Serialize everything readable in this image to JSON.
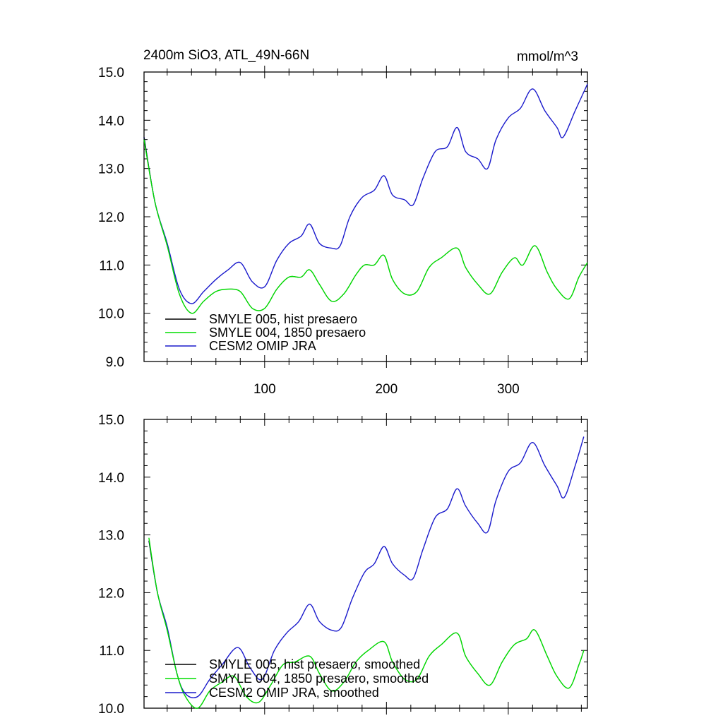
{
  "header": {
    "left_title": "2400m SiO3, ATL_49N-66N",
    "right_title": "mmol/m^3"
  },
  "colors": {
    "smyle005": "#000000",
    "smyle004": "#00dd00",
    "omip": "#1a1acc"
  },
  "chart_data": [
    {
      "type": "line",
      "xlim": [
        1,
        365
      ],
      "ylim": [
        9.0,
        15.0
      ],
      "x_ticks_labeled": [
        100,
        200,
        300
      ],
      "y_ticks": [
        "9.0",
        "10.0",
        "11.0",
        "12.0",
        "13.0",
        "14.0",
        "15.0"
      ],
      "x_tick_labels": [
        "100",
        "200",
        "300"
      ],
      "legend": [
        "SMYLE 005, hist presaero",
        "SMYLE 004, 1850 presaero",
        "CESM2 OMIP JRA"
      ],
      "series": [
        {
          "name": "SMYLE 005, hist presaero",
          "color_key": "smyle005",
          "x": [
            1,
            10,
            20,
            30,
            40,
            50,
            60,
            70,
            80,
            90,
            100,
            110,
            120,
            130,
            137,
            145,
            155,
            165,
            175,
            182,
            190,
            198,
            205,
            215,
            225,
            235,
            245,
            258,
            265,
            275,
            285,
            295,
            305,
            312,
            322,
            332,
            340,
            350,
            358,
            365
          ],
          "y": [
            13.65,
            12.3,
            11.4,
            10.4,
            10.0,
            10.25,
            10.45,
            10.5,
            10.45,
            10.1,
            10.1,
            10.5,
            10.75,
            10.75,
            10.9,
            10.6,
            10.25,
            10.4,
            10.8,
            11.0,
            11.0,
            11.2,
            10.7,
            10.4,
            10.45,
            10.95,
            11.15,
            11.35,
            10.95,
            10.6,
            10.4,
            10.85,
            11.15,
            11.0,
            11.4,
            10.85,
            10.5,
            10.3,
            10.75,
            11.05
          ]
        },
        {
          "name": "SMYLE 004, 1850 presaero",
          "color_key": "smyle004",
          "x": [
            1,
            10,
            20,
            30,
            40,
            50,
            60,
            70,
            80,
            90,
            100,
            110,
            120,
            130,
            137,
            145,
            155,
            165,
            175,
            182,
            190,
            198,
            205,
            215,
            225,
            235,
            245,
            258,
            265,
            275,
            285,
            295,
            305,
            312,
            322,
            332,
            340,
            350,
            358,
            365
          ],
          "y": [
            13.6,
            12.3,
            11.4,
            10.4,
            10.0,
            10.25,
            10.45,
            10.5,
            10.45,
            10.1,
            10.1,
            10.5,
            10.75,
            10.75,
            10.9,
            10.6,
            10.25,
            10.4,
            10.8,
            11.0,
            11.0,
            11.2,
            10.7,
            10.4,
            10.45,
            10.95,
            11.15,
            11.35,
            10.95,
            10.6,
            10.4,
            10.85,
            11.15,
            11.0,
            11.4,
            10.85,
            10.5,
            10.3,
            10.75,
            11.05
          ]
        },
        {
          "name": "CESM2 OMIP JRA",
          "color_key": "omip",
          "x": [
            1,
            10,
            20,
            30,
            40,
            50,
            60,
            70,
            80,
            90,
            100,
            110,
            120,
            130,
            137,
            145,
            155,
            162,
            170,
            180,
            190,
            198,
            205,
            215,
            222,
            230,
            240,
            250,
            258,
            265,
            275,
            283,
            290,
            300,
            310,
            320,
            330,
            340,
            345,
            355,
            365
          ],
          "y": [
            13.65,
            12.3,
            11.45,
            10.5,
            10.2,
            10.45,
            10.7,
            10.9,
            11.05,
            10.65,
            10.55,
            11.1,
            11.45,
            11.6,
            11.85,
            11.45,
            11.35,
            11.4,
            12.0,
            12.4,
            12.55,
            12.85,
            12.45,
            12.35,
            12.25,
            12.8,
            13.35,
            13.45,
            13.85,
            13.35,
            13.2,
            13.0,
            13.6,
            14.05,
            14.25,
            14.65,
            14.2,
            13.85,
            13.65,
            14.2,
            14.75
          ]
        }
      ]
    },
    {
      "type": "line",
      "xlim": [
        1,
        365
      ],
      "ylim": [
        10.0,
        15.0
      ],
      "y_ticks": [
        "10.0",
        "11.0",
        "12.0",
        "13.0",
        "14.0",
        "15.0"
      ],
      "legend": [
        "SMYLE 005, hist presaero, smoothed",
        "SMYLE 004, 1850 presaero, smoothed",
        "CESM2 OMIP JRA, smoothed"
      ],
      "series": [
        {
          "name": "SMYLE 005, hist presaero, smoothed",
          "color_key": "smyle005",
          "x": [
            5,
            12,
            20,
            28,
            35,
            45,
            55,
            65,
            75,
            85,
            95,
            105,
            115,
            125,
            137,
            145,
            155,
            165,
            175,
            185,
            198,
            205,
            215,
            225,
            235,
            245,
            258,
            265,
            275,
            285,
            295,
            305,
            315,
            322,
            332,
            340,
            350,
            358,
            362
          ],
          "y": [
            12.9,
            12.0,
            11.35,
            10.6,
            10.2,
            10.0,
            10.3,
            10.45,
            10.55,
            10.2,
            10.1,
            10.4,
            10.75,
            10.8,
            10.9,
            10.6,
            10.3,
            10.45,
            10.8,
            11.0,
            11.15,
            10.8,
            10.5,
            10.5,
            10.9,
            11.1,
            11.3,
            10.9,
            10.6,
            10.4,
            10.8,
            11.1,
            11.2,
            11.35,
            10.9,
            10.55,
            10.35,
            10.75,
            11.0
          ]
        },
        {
          "name": "SMYLE 004, 1850 presaero, smoothed",
          "color_key": "smyle004",
          "x": [
            5,
            12,
            20,
            28,
            35,
            45,
            55,
            65,
            75,
            85,
            95,
            105,
            115,
            125,
            137,
            145,
            155,
            165,
            175,
            185,
            198,
            205,
            215,
            225,
            235,
            245,
            258,
            265,
            275,
            285,
            295,
            305,
            315,
            322,
            332,
            340,
            350,
            358,
            362
          ],
          "y": [
            12.95,
            12.0,
            11.35,
            10.6,
            10.2,
            10.0,
            10.3,
            10.45,
            10.55,
            10.2,
            10.1,
            10.4,
            10.75,
            10.8,
            10.9,
            10.6,
            10.3,
            10.45,
            10.8,
            11.0,
            11.15,
            10.8,
            10.5,
            10.5,
            10.9,
            11.1,
            11.3,
            10.9,
            10.6,
            10.4,
            10.8,
            11.1,
            11.2,
            11.35,
            10.9,
            10.55,
            10.35,
            10.75,
            11.0
          ]
        },
        {
          "name": "CESM2 OMIP JRA, smoothed",
          "color_key": "omip",
          "x": [
            5,
            12,
            20,
            28,
            35,
            45,
            55,
            65,
            78,
            88,
            98,
            108,
            118,
            128,
            137,
            145,
            155,
            163,
            172,
            182,
            190,
            198,
            205,
            215,
            222,
            230,
            240,
            250,
            258,
            265,
            275,
            283,
            290,
            300,
            310,
            320,
            330,
            340,
            346,
            355,
            362
          ],
          "y": [
            12.9,
            12.0,
            11.4,
            10.6,
            10.25,
            10.2,
            10.5,
            10.75,
            11.05,
            10.7,
            10.5,
            11.0,
            11.3,
            11.5,
            11.8,
            11.5,
            11.35,
            11.4,
            11.9,
            12.35,
            12.5,
            12.8,
            12.5,
            12.3,
            12.25,
            12.75,
            13.3,
            13.45,
            13.8,
            13.5,
            13.2,
            13.05,
            13.6,
            14.1,
            14.25,
            14.6,
            14.2,
            13.85,
            13.65,
            14.2,
            14.7
          ]
        }
      ]
    }
  ]
}
